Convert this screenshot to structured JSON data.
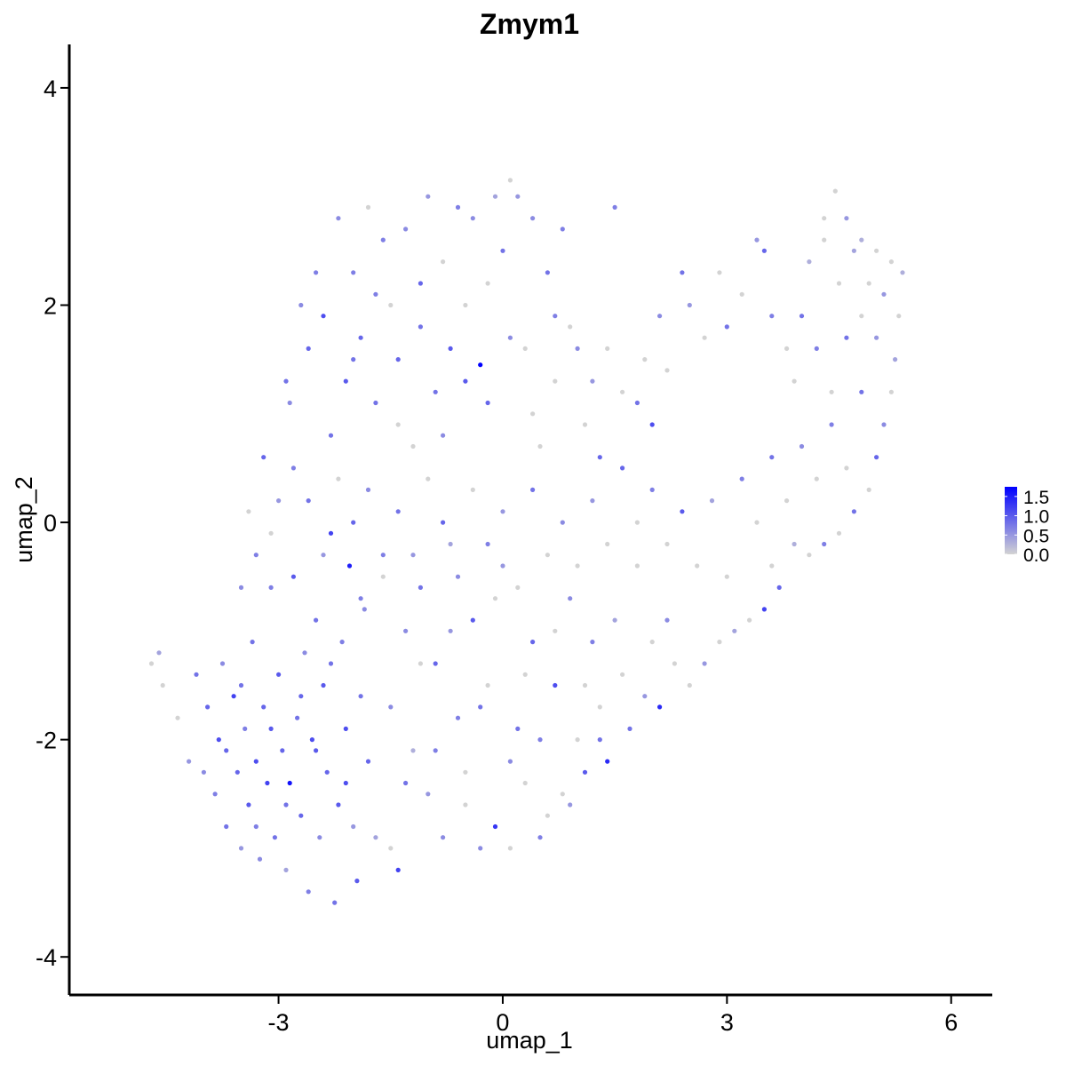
{
  "chart_data": {
    "type": "scatter",
    "title": "Zmym1",
    "xlabel": "umap_1",
    "ylabel": "umap_2",
    "xlim": [
      -5.8,
      6.55
    ],
    "ylim": [
      -4.35,
      4.4
    ],
    "xticks": [
      -3,
      0,
      3,
      6
    ],
    "xtick_labels": [
      "-3",
      "0",
      "3",
      "6"
    ],
    "yticks": [
      -4,
      -2,
      0,
      2,
      4
    ],
    "ytick_labels": [
      "-4",
      "-2",
      "0",
      "2",
      "4"
    ],
    "grid": false,
    "legend_placement": "right",
    "color_scale": {
      "low_color": "#d3d3d3",
      "high_color": "#0000ff",
      "min": 0.0,
      "max": 1.75,
      "ticks": [
        1.5,
        1.0,
        0.5,
        0.0
      ],
      "tick_labels": [
        "1.5",
        "1.0",
        "0.5",
        "0.0"
      ]
    },
    "points": [
      [
        -4.7,
        -1.3,
        0
      ],
      [
        -4.6,
        -1.2,
        0.4
      ],
      [
        -4.55,
        -1.5,
        0
      ],
      [
        -4.35,
        -1.8,
        0
      ],
      [
        -4.2,
        -2.2,
        0.5
      ],
      [
        -4.1,
        -1.4,
        0.8
      ],
      [
        -4.0,
        -2.3,
        0.6
      ],
      [
        -3.95,
        -1.7,
        0.9
      ],
      [
        -3.85,
        -2.5,
        0.7
      ],
      [
        -3.8,
        -2.0,
        1.1
      ],
      [
        -3.75,
        -1.3,
        0.6
      ],
      [
        -3.7,
        -2.8,
        0.8
      ],
      [
        -3.6,
        -1.6,
        1.2
      ],
      [
        -3.55,
        -2.3,
        0.9
      ],
      [
        -3.5,
        -3.0,
        0.5
      ],
      [
        -3.45,
        -1.9,
        0.7
      ],
      [
        -3.4,
        -2.6,
        1.0
      ],
      [
        -3.35,
        -1.1,
        0.8
      ],
      [
        -3.3,
        -2.2,
        1.1
      ],
      [
        -3.25,
        -3.1,
        0.6
      ],
      [
        -3.2,
        -1.7,
        0.9
      ],
      [
        -3.15,
        -2.4,
        1.2
      ],
      [
        -3.1,
        -0.6,
        0.7
      ],
      [
        -3.05,
        -2.9,
        0.8
      ],
      [
        -3.0,
        -1.4,
        1.0
      ],
      [
        -2.95,
        -2.1,
        0.9
      ],
      [
        -2.9,
        -3.2,
        0.4
      ],
      [
        -2.85,
        -2.4,
        1.6
      ],
      [
        -2.8,
        -0.5,
        1.0
      ],
      [
        -2.75,
        -1.8,
        0.8
      ],
      [
        -2.7,
        -2.7,
        0.9
      ],
      [
        -2.65,
        -1.2,
        0.6
      ],
      [
        -2.6,
        -3.4,
        0.7
      ],
      [
        -2.55,
        -2.0,
        1.1
      ],
      [
        -2.5,
        -0.9,
        0.8
      ],
      [
        -2.45,
        -2.9,
        0.6
      ],
      [
        -2.4,
        -1.5,
        1.0
      ],
      [
        -2.35,
        -2.3,
        0.9
      ],
      [
        -2.3,
        -0.1,
        1.2
      ],
      [
        -2.25,
        -3.5,
        0.8
      ],
      [
        -2.2,
        -2.6,
        1.0
      ],
      [
        -2.15,
        -1.1,
        0.7
      ],
      [
        -2.1,
        -1.9,
        1.1
      ],
      [
        -2.05,
        -0.4,
        1.5
      ],
      [
        -2.0,
        -2.8,
        0.5
      ],
      [
        -1.95,
        -3.3,
        1.0
      ],
      [
        -1.9,
        -1.6,
        0.8
      ],
      [
        -1.85,
        -0.8,
        0.6
      ],
      [
        -1.8,
        -2.2,
        0.9
      ],
      [
        -1.7,
        -2.9,
        0.4
      ],
      [
        -1.6,
        -0.3,
        0.7
      ],
      [
        -1.5,
        -3.0,
        0
      ],
      [
        -1.4,
        -3.2,
        1.2
      ],
      [
        -1.3,
        -1.0,
        0.6
      ],
      [
        -1.2,
        -2.1,
        0.3
      ],
      [
        -1.1,
        -0.6,
        0.8
      ],
      [
        -1.0,
        -2.5,
        0.5
      ],
      [
        -0.9,
        -1.3,
        0.9
      ],
      [
        -0.8,
        -2.9,
        0.6
      ],
      [
        -0.7,
        -0.2,
        0.4
      ],
      [
        -0.6,
        -1.8,
        0.7
      ],
      [
        -0.5,
        -2.3,
        0
      ],
      [
        -0.4,
        -0.9,
        1.0
      ],
      [
        -0.3,
        -3.0,
        0.6
      ],
      [
        -0.2,
        -1.5,
        0
      ],
      [
        -0.1,
        -2.8,
        1.3
      ],
      [
        0.0,
        -0.4,
        0.5
      ],
      [
        0.1,
        -3.0,
        0
      ],
      [
        0.2,
        -1.9,
        0.8
      ],
      [
        0.3,
        -2.4,
        0
      ],
      [
        0.4,
        -1.1,
        0.9
      ],
      [
        0.5,
        -2.9,
        0.7
      ],
      [
        0.6,
        -2.7,
        0
      ],
      [
        0.7,
        -1.5,
        1.1
      ],
      [
        0.8,
        -2.5,
        0
      ],
      [
        0.9,
        -0.7,
        0.6
      ],
      [
        1.0,
        -2.0,
        0
      ],
      [
        1.1,
        -2.3,
        1.0
      ],
      [
        1.2,
        -1.1,
        0.7
      ],
      [
        1.3,
        -1.7,
        0
      ],
      [
        1.4,
        -2.2,
        1.4
      ],
      [
        1.5,
        -0.9,
        0.4
      ],
      [
        1.6,
        -1.4,
        0
      ],
      [
        1.7,
        -1.9,
        0.8
      ],
      [
        1.8,
        -0.4,
        0
      ],
      [
        1.9,
        -1.6,
        0.5
      ],
      [
        2.0,
        -1.1,
        0
      ],
      [
        2.1,
        -1.7,
        1.4
      ],
      [
        2.2,
        -0.9,
        0.6
      ],
      [
        2.3,
        -1.3,
        0
      ],
      [
        2.5,
        -1.5,
        0
      ],
      [
        2.7,
        -1.3,
        0.5
      ],
      [
        2.9,
        -1.1,
        0
      ],
      [
        3.1,
        -1.0,
        0.4
      ],
      [
        3.3,
        -0.9,
        0
      ],
      [
        3.5,
        -0.8,
        1.2
      ],
      [
        3.6,
        -0.4,
        0
      ],
      [
        3.7,
        -0.6,
        0.9
      ],
      [
        3.9,
        -0.2,
        0.3
      ],
      [
        4.1,
        -0.3,
        0
      ],
      [
        4.3,
        -0.2,
        0.7
      ],
      [
        4.5,
        -0.1,
        0
      ],
      [
        4.7,
        0.1,
        0.8
      ],
      [
        4.9,
        0.3,
        0
      ],
      [
        5.0,
        0.6,
        0.9
      ],
      [
        5.1,
        0.9,
        0.6
      ],
      [
        5.2,
        1.2,
        0
      ],
      [
        5.25,
        1.5,
        0.4
      ],
      [
        5.3,
        1.9,
        0
      ],
      [
        5.35,
        2.3,
        0.3
      ],
      [
        5.2,
        2.4,
        0
      ],
      [
        5.0,
        2.5,
        0
      ],
      [
        4.8,
        2.6,
        0.3
      ],
      [
        4.6,
        2.8,
        0.5
      ],
      [
        4.45,
        3.05,
        0
      ],
      [
        4.3,
        2.6,
        0
      ],
      [
        4.1,
        2.4,
        0.3
      ],
      [
        4.0,
        1.9,
        0.8
      ],
      [
        3.8,
        1.6,
        0
      ],
      [
        3.6,
        1.9,
        0.7
      ],
      [
        3.5,
        2.5,
        0.9
      ],
      [
        3.4,
        2.6,
        0.5
      ],
      [
        3.2,
        2.1,
        0
      ],
      [
        3.0,
        1.8,
        0.8
      ],
      [
        2.9,
        2.3,
        0
      ],
      [
        2.7,
        1.7,
        0
      ],
      [
        2.5,
        2.0,
        0.5
      ],
      [
        2.4,
        2.3,
        0.8
      ],
      [
        2.2,
        1.4,
        0
      ],
      [
        2.1,
        1.9,
        0.6
      ],
      [
        2.0,
        0.9,
        1.1
      ],
      [
        1.9,
        1.5,
        0
      ],
      [
        1.8,
        1.1,
        0.8
      ],
      [
        1.6,
        1.2,
        0
      ],
      [
        1.5,
        2.9,
        0.7
      ],
      [
        1.4,
        1.6,
        0
      ],
      [
        1.3,
        0.6,
        0.9
      ],
      [
        1.2,
        1.3,
        0.5
      ],
      [
        1.1,
        0.9,
        0
      ],
      [
        1.0,
        1.6,
        0.6
      ],
      [
        0.9,
        1.8,
        0
      ],
      [
        0.8,
        2.7,
        0.7
      ],
      [
        0.7,
        1.3,
        0
      ],
      [
        0.6,
        2.3,
        0.8
      ],
      [
        0.5,
        0.7,
        0
      ],
      [
        0.4,
        2.8,
        0.6
      ],
      [
        0.3,
        1.6,
        0
      ],
      [
        0.2,
        3.0,
        0.5
      ],
      [
        0.1,
        3.15,
        0
      ],
      [
        0.0,
        2.5,
        0.8
      ],
      [
        -0.1,
        3.0,
        0.4
      ],
      [
        -0.2,
        1.1,
        0.9
      ],
      [
        -0.3,
        1.45,
        1.75
      ],
      [
        -0.4,
        2.8,
        0.6
      ],
      [
        -0.5,
        2.0,
        0
      ],
      [
        -0.6,
        2.9,
        0.7
      ],
      [
        -0.7,
        1.6,
        1.0
      ],
      [
        -0.8,
        2.4,
        0
      ],
      [
        -0.9,
        1.2,
        0.8
      ],
      [
        -1.0,
        3.0,
        0.5
      ],
      [
        -1.1,
        2.2,
        0.9
      ],
      [
        -1.2,
        0.7,
        0
      ],
      [
        -1.3,
        2.7,
        0.6
      ],
      [
        -1.4,
        1.5,
        0.9
      ],
      [
        -1.5,
        2.0,
        0
      ],
      [
        -1.6,
        2.6,
        0.7
      ],
      [
        -1.7,
        1.1,
        0.8
      ],
      [
        -1.8,
        2.9,
        0
      ],
      [
        -1.9,
        1.7,
        0.9
      ],
      [
        -2.0,
        2.3,
        0.7
      ],
      [
        -2.1,
        1.3,
        1.0
      ],
      [
        -2.2,
        2.8,
        0.6
      ],
      [
        -2.3,
        0.8,
        0.8
      ],
      [
        -2.4,
        1.9,
        1.1
      ],
      [
        -2.5,
        2.3,
        0.7
      ],
      [
        -2.6,
        1.6,
        0.9
      ],
      [
        -2.7,
        2.0,
        0.6
      ],
      [
        -2.8,
        0.5,
        0.7
      ],
      [
        -2.9,
        1.3,
        0.8
      ],
      [
        -3.0,
        0.2,
        0.5
      ],
      [
        -3.1,
        -0.1,
        0
      ],
      [
        -3.2,
        0.6,
        0.9
      ],
      [
        -3.3,
        -0.3,
        0.7
      ],
      [
        -3.4,
        0.1,
        0
      ],
      [
        -3.5,
        -0.6,
        0.6
      ],
      [
        -2.85,
        1.1,
        0.6
      ],
      [
        -2.6,
        0.2,
        0.8
      ],
      [
        -2.4,
        -0.3,
        0.5
      ],
      [
        -2.2,
        0.4,
        0
      ],
      [
        -2.0,
        0.0,
        0.9
      ],
      [
        -1.8,
        0.3,
        0.6
      ],
      [
        -1.6,
        -0.5,
        0
      ],
      [
        -1.4,
        0.1,
        0.8
      ],
      [
        -1.2,
        -0.3,
        0.5
      ],
      [
        -1.0,
        0.4,
        0
      ],
      [
        -0.8,
        0.0,
        0.9
      ],
      [
        -0.6,
        -0.5,
        0.6
      ],
      [
        -0.4,
        0.3,
        0
      ],
      [
        -0.2,
        -0.2,
        0.7
      ],
      [
        0.0,
        0.1,
        0.5
      ],
      [
        0.2,
        -0.6,
        0
      ],
      [
        0.4,
        0.3,
        0.8
      ],
      [
        0.6,
        -0.3,
        0
      ],
      [
        0.8,
        0.0,
        0.6
      ],
      [
        1.0,
        -0.4,
        0
      ],
      [
        1.2,
        0.2,
        0.5
      ],
      [
        1.4,
        -0.2,
        0
      ],
      [
        1.6,
        0.5,
        0.9
      ],
      [
        1.8,
        0.0,
        0
      ],
      [
        2.0,
        0.3,
        0.7
      ],
      [
        2.2,
        -0.2,
        0
      ],
      [
        2.4,
        0.1,
        1.0
      ],
      [
        2.6,
        -0.4,
        0
      ],
      [
        2.8,
        0.2,
        0.4
      ],
      [
        3.0,
        -0.5,
        0
      ],
      [
        3.2,
        0.4,
        0.7
      ],
      [
        3.4,
        0.0,
        0
      ],
      [
        3.6,
        0.6,
        0.8
      ],
      [
        3.8,
        0.2,
        0
      ],
      [
        4.0,
        0.7,
        0.6
      ],
      [
        4.2,
        0.4,
        0
      ],
      [
        4.4,
        0.9,
        0.7
      ],
      [
        4.6,
        0.5,
        0
      ],
      [
        4.8,
        1.2,
        0.8
      ],
      [
        5.0,
        1.7,
        0.5
      ],
      [
        3.9,
        1.3,
        0
      ],
      [
        4.2,
        1.6,
        0.7
      ],
      [
        4.4,
        1.2,
        0
      ],
      [
        4.6,
        1.7,
        0.8
      ],
      [
        4.8,
        1.9,
        0
      ],
      [
        4.5,
        2.2,
        0
      ],
      [
        4.7,
        2.5,
        0.4
      ],
      [
        4.3,
        2.8,
        0
      ],
      [
        4.9,
        2.2,
        0
      ],
      [
        5.1,
        2.1,
        0.5
      ],
      [
        -1.5,
        -1.7,
        0.6
      ],
      [
        -1.3,
        -2.4,
        0.8
      ],
      [
        -1.1,
        -1.3,
        0
      ],
      [
        -0.9,
        -2.1,
        0.7
      ],
      [
        -0.7,
        -1.0,
        0.5
      ],
      [
        -0.5,
        -2.6,
        0
      ],
      [
        -0.3,
        -1.7,
        0.8
      ],
      [
        -0.1,
        -0.7,
        0
      ],
      [
        0.1,
        -2.2,
        0.6
      ],
      [
        0.3,
        -1.4,
        0
      ],
      [
        0.5,
        -2.0,
        0.7
      ],
      [
        0.7,
        -1.0,
        0
      ],
      [
        0.9,
        -2.6,
        0.5
      ],
      [
        1.1,
        -1.5,
        0
      ],
      [
        1.3,
        -2.0,
        0.8
      ],
      [
        -2.7,
        -1.6,
        0.9
      ],
      [
        -2.5,
        -2.1,
        1.0
      ],
      [
        -2.3,
        -1.3,
        0.8
      ],
      [
        -2.1,
        -2.4,
        1.1
      ],
      [
        -1.9,
        -0.7,
        0.7
      ],
      [
        -3.7,
        -2.1,
        0.9
      ],
      [
        -3.5,
        -1.5,
        0.8
      ],
      [
        -3.3,
        -2.8,
        0.7
      ],
      [
        -3.1,
        -1.9,
        1.0
      ],
      [
        -2.9,
        -2.6,
        0.8
      ],
      [
        -2.0,
        1.5,
        0.8
      ],
      [
        -1.7,
        2.1,
        0.7
      ],
      [
        -1.4,
        0.9,
        0
      ],
      [
        -1.1,
        1.8,
        0.8
      ],
      [
        -0.8,
        0.8,
        0.6
      ],
      [
        -0.5,
        1.3,
        1.0
      ],
      [
        -0.2,
        2.2,
        0
      ],
      [
        0.1,
        1.7,
        0.6
      ],
      [
        0.4,
        1.0,
        0
      ],
      [
        0.7,
        1.9,
        0.7
      ]
    ]
  }
}
